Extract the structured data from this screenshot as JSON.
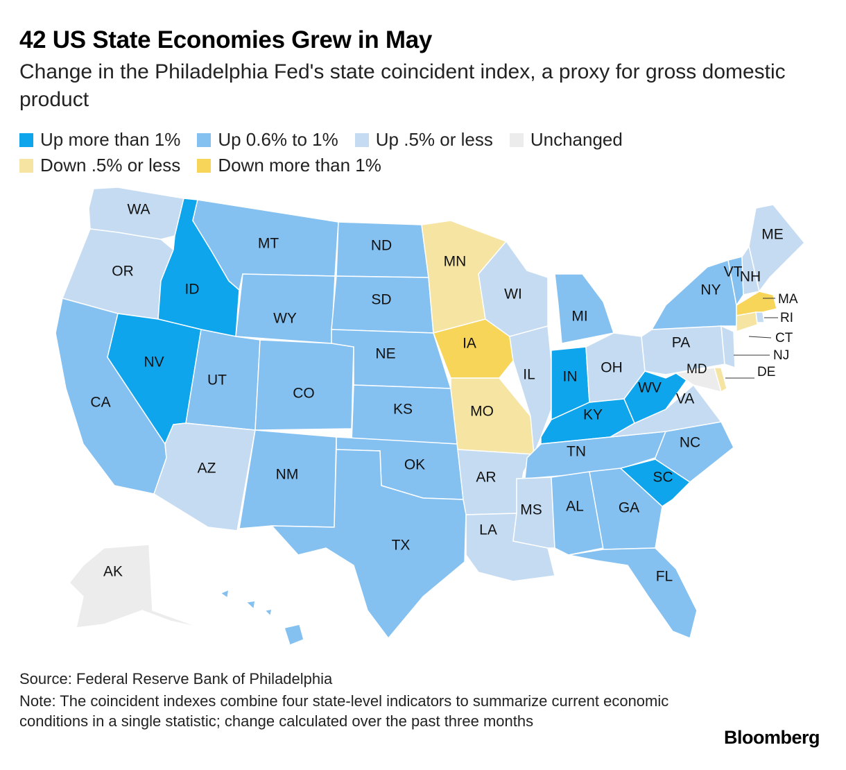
{
  "header": {
    "title": "42 US State Economies Grew in May",
    "subtitle": "Change in the Philadelphia Fed's state coincident index, a proxy for gross domestic product"
  },
  "legend": [
    {
      "label": "Up more than 1%",
      "color": "#0ea5ec"
    },
    {
      "label": "Up 0.6% to 1%",
      "color": "#84c0f0"
    },
    {
      "label": "Up .5% or less",
      "color": "#c4dbf2"
    },
    {
      "label": "Unchanged",
      "color": "#ececec"
    },
    {
      "label": "Down .5% or less",
      "color": "#f5e4a2"
    },
    {
      "label": "Down more than 1%",
      "color": "#f7d558"
    }
  ],
  "map": {
    "states": [
      {
        "abbr": "WA",
        "category": "Up .5% or less"
      },
      {
        "abbr": "OR",
        "category": "Up .5% or less"
      },
      {
        "abbr": "CA",
        "category": "Up 0.6% to 1%"
      },
      {
        "abbr": "ID",
        "category": "Up more than 1%"
      },
      {
        "abbr": "NV",
        "category": "Up more than 1%"
      },
      {
        "abbr": "MT",
        "category": "Up 0.6% to 1%"
      },
      {
        "abbr": "WY",
        "category": "Up 0.6% to 1%"
      },
      {
        "abbr": "UT",
        "category": "Up 0.6% to 1%"
      },
      {
        "abbr": "AZ",
        "category": "Up .5% or less"
      },
      {
        "abbr": "CO",
        "category": "Up 0.6% to 1%"
      },
      {
        "abbr": "NM",
        "category": "Up 0.6% to 1%"
      },
      {
        "abbr": "ND",
        "category": "Up 0.6% to 1%"
      },
      {
        "abbr": "SD",
        "category": "Up 0.6% to 1%"
      },
      {
        "abbr": "NE",
        "category": "Up 0.6% to 1%"
      },
      {
        "abbr": "KS",
        "category": "Up 0.6% to 1%"
      },
      {
        "abbr": "OK",
        "category": "Up 0.6% to 1%"
      },
      {
        "abbr": "TX",
        "category": "Up 0.6% to 1%"
      },
      {
        "abbr": "MN",
        "category": "Down .5% or less"
      },
      {
        "abbr": "IA",
        "category": "Down more than 1%"
      },
      {
        "abbr": "MO",
        "category": "Down .5% or less"
      },
      {
        "abbr": "AR",
        "category": "Up .5% or less"
      },
      {
        "abbr": "LA",
        "category": "Up .5% or less"
      },
      {
        "abbr": "WI",
        "category": "Up .5% or less"
      },
      {
        "abbr": "IL",
        "category": "Up .5% or less"
      },
      {
        "abbr": "MI",
        "category": "Up 0.6% to 1%"
      },
      {
        "abbr": "IN",
        "category": "Up more than 1%"
      },
      {
        "abbr": "OH",
        "category": "Up .5% or less"
      },
      {
        "abbr": "KY",
        "category": "Up more than 1%"
      },
      {
        "abbr": "TN",
        "category": "Up 0.6% to 1%"
      },
      {
        "abbr": "MS",
        "category": "Up .5% or less"
      },
      {
        "abbr": "AL",
        "category": "Up 0.6% to 1%"
      },
      {
        "abbr": "GA",
        "category": "Up 0.6% to 1%"
      },
      {
        "abbr": "FL",
        "category": "Up 0.6% to 1%"
      },
      {
        "abbr": "SC",
        "category": "Up more than 1%"
      },
      {
        "abbr": "NC",
        "category": "Up 0.6% to 1%"
      },
      {
        "abbr": "VA",
        "category": "Up .5% or less"
      },
      {
        "abbr": "WV",
        "category": "Up more than 1%"
      },
      {
        "abbr": "PA",
        "category": "Up .5% or less"
      },
      {
        "abbr": "NY",
        "category": "Up 0.6% to 1%"
      },
      {
        "abbr": "VT",
        "category": "Up 0.6% to 1%"
      },
      {
        "abbr": "NH",
        "category": "Up .5% or less"
      },
      {
        "abbr": "ME",
        "category": "Up .5% or less"
      },
      {
        "abbr": "MA",
        "category": "Down more than 1%"
      },
      {
        "abbr": "RI",
        "category": "Up .5% or less"
      },
      {
        "abbr": "CT",
        "category": "Down .5% or less"
      },
      {
        "abbr": "NJ",
        "category": "Up .5% or less"
      },
      {
        "abbr": "DE",
        "category": "Down .5% or less"
      },
      {
        "abbr": "MD",
        "category": "Unchanged"
      },
      {
        "abbr": "AK",
        "category": "Unchanged"
      },
      {
        "abbr": "HI",
        "category": "Up 0.6% to 1%"
      }
    ]
  },
  "footer": {
    "source": "Source: Federal Reserve Bank of Philadelphia",
    "note": "Note: The coincident indexes combine four state-level indicators to summarize current economic conditions in a single statistic; change calculated over the past three months",
    "brand": "Bloomberg"
  }
}
